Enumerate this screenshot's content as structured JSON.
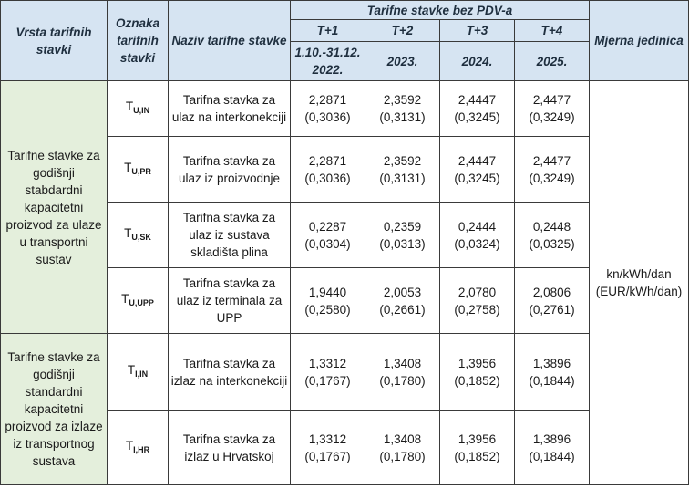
{
  "header": {
    "col_type": "Vrsta tarifnih stavki",
    "col_code": "Oznaka tarifnih stavki",
    "col_name": "Naziv tarifne stavke",
    "group_title": "Tarifne stavke bez PDV-a",
    "col_unit": "Mjerna jedinica",
    "periods": [
      {
        "label": "T+1",
        "year": "1.10.-31.12. 2022."
      },
      {
        "label": "T+2",
        "year": "2023."
      },
      {
        "label": "T+3",
        "year": "2024."
      },
      {
        "label": "T+4",
        "year": "2025."
      }
    ]
  },
  "groups": [
    {
      "label": "Tarifne stavke za godišnji stabdardni kapacitetni proizvod za ulaze u transportni sustav"
    },
    {
      "label": "Tarifne stavke za godišnji standardni kapacitetni proizvod za izlaze iz transportnog sustava"
    }
  ],
  "unit": {
    "line1": "kn/kWh/dan",
    "line2": "(EUR/kWh/dan)"
  },
  "rows": [
    {
      "code_main": "T",
      "code_sub": "U,IN",
      "name": "Tarifna stavka za ulaz na interkonekciji",
      "values": [
        {
          "kn": "2,2871",
          "eur": "(0,3036)"
        },
        {
          "kn": "2,3592",
          "eur": "(0,3131)"
        },
        {
          "kn": "2,4447",
          "eur": "(0,3245)"
        },
        {
          "kn": "2,4477",
          "eur": "(0,3249)"
        }
      ]
    },
    {
      "code_main": "T",
      "code_sub": "U,PR",
      "name": "Tarifna stavka za ulaz iz proizvodnje",
      "values": [
        {
          "kn": "2,2871",
          "eur": "(0,3036)"
        },
        {
          "kn": "2,3592",
          "eur": "(0,3131)"
        },
        {
          "kn": "2,4447",
          "eur": "(0,3245)"
        },
        {
          "kn": "2,4477",
          "eur": "(0,3249)"
        }
      ]
    },
    {
      "code_main": "T",
      "code_sub": "U,SK",
      "name": "Tarifna stavka za ulaz iz sustava skladišta plina",
      "values": [
        {
          "kn": "0,2287",
          "eur": "(0,0304)"
        },
        {
          "kn": "0,2359",
          "eur": "(0,0313)"
        },
        {
          "kn": "0,2444",
          "eur": "(0,0324)"
        },
        {
          "kn": "0,2448",
          "eur": "(0,0325)"
        }
      ]
    },
    {
      "code_main": "T",
      "code_sub": "U,UPP",
      "name": "Tarifna stavka za ulaz iz terminala za UPP",
      "values": [
        {
          "kn": "1,9440",
          "eur": "(0,2580)"
        },
        {
          "kn": "2,0053",
          "eur": "(0,2661)"
        },
        {
          "kn": "2,0780",
          "eur": "(0,2758)"
        },
        {
          "kn": "2,0806",
          "eur": "(0,2761)"
        }
      ]
    },
    {
      "code_main": "T",
      "code_sub": "I,IN",
      "name": "Tarifna stavka za izlaz na interkonekciji",
      "values": [
        {
          "kn": "1,3312",
          "eur": "(0,1767)"
        },
        {
          "kn": "1,3408",
          "eur": "(0,1780)"
        },
        {
          "kn": "1,3956",
          "eur": "(0,1852)"
        },
        {
          "kn": "1,3896",
          "eur": "(0,1844)"
        }
      ]
    },
    {
      "code_main": "T",
      "code_sub": "I,HR",
      "name": "Tarifna stavka za izlaz u Hrvatskoj",
      "values": [
        {
          "kn": "1,3312",
          "eur": "(0,1767)"
        },
        {
          "kn": "1,3408",
          "eur": "(0,1780)"
        },
        {
          "kn": "1,3956",
          "eur": "(0,1852)"
        },
        {
          "kn": "1,3896",
          "eur": "(0,1844)"
        }
      ]
    }
  ]
}
